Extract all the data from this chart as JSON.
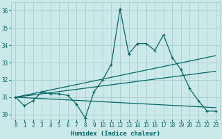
{
  "xlabel": "Humidex (Indice chaleur)",
  "xlim": [
    -0.5,
    23.5
  ],
  "ylim": [
    29.7,
    36.5
  ],
  "yticks": [
    30,
    31,
    32,
    33,
    34,
    35,
    36
  ],
  "xticks": [
    0,
    1,
    2,
    3,
    4,
    5,
    6,
    7,
    8,
    9,
    10,
    11,
    12,
    13,
    14,
    15,
    16,
    17,
    18,
    19,
    20,
    21,
    22,
    23
  ],
  "background_color": "#cce9e9",
  "grid_color": "#aacccc",
  "line_color": "#006666",
  "main_data_x": [
    0,
    1,
    2,
    3,
    4,
    5,
    6,
    7,
    8,
    9,
    10,
    11,
    12,
    13,
    14,
    15,
    16,
    17,
    18,
    19,
    20,
    21,
    22,
    23
  ],
  "main_data_y": [
    31.0,
    30.5,
    30.8,
    31.3,
    31.2,
    31.2,
    31.1,
    30.6,
    29.8,
    31.3,
    32.0,
    32.9,
    36.1,
    33.5,
    34.1,
    34.1,
    33.7,
    34.6,
    33.3,
    32.6,
    31.5,
    30.8,
    30.2,
    30.2
  ],
  "trend1_x": [
    0,
    23
  ],
  "trend1_y": [
    31.0,
    33.4
  ],
  "trend2_x": [
    0,
    23
  ],
  "trend2_y": [
    31.0,
    32.5
  ],
  "trend3_x": [
    0,
    23
  ],
  "trend3_y": [
    31.0,
    30.4
  ]
}
